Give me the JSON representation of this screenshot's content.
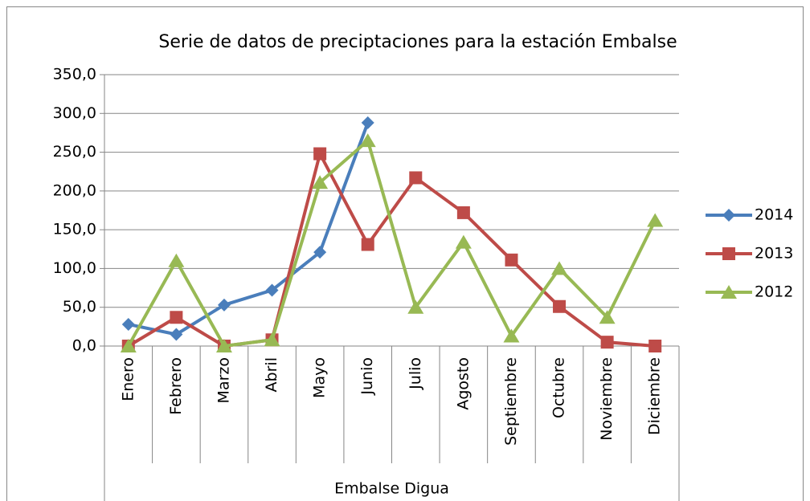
{
  "chart_data": {
    "type": "line",
    "title": "Serie de datos de preciptaciones para la estación Embalse",
    "x_label": "Embalse Digua",
    "categories": [
      "Enero",
      "Febrero",
      "Marzo",
      "Abril",
      "Mayo",
      "Junio",
      "Julio",
      "Agosto",
      "Septiembre",
      "Octubre",
      "Noviembre",
      "Diciembre"
    ],
    "series": [
      {
        "name": "2014",
        "color": "#4a7ebb",
        "marker": "diamond",
        "values": [
          28,
          15,
          53,
          72,
          121,
          288,
          null,
          null,
          null,
          null,
          null,
          null
        ]
      },
      {
        "name": "2013",
        "color": "#be4b48",
        "marker": "square",
        "values": [
          0,
          37,
          0,
          8,
          248,
          131,
          217,
          172,
          111,
          51,
          5,
          0
        ]
      },
      {
        "name": "2012",
        "color": "#98b954",
        "marker": "triangle",
        "values": [
          0,
          110,
          0,
          8,
          211,
          265,
          50,
          134,
          13,
          100,
          37,
          162
        ]
      }
    ],
    "ylim": [
      0,
      350
    ],
    "yticks": [
      {
        "value": 0,
        "label": "0,0"
      },
      {
        "value": 50,
        "label": "50,0"
      },
      {
        "value": 100,
        "label": "100,0"
      },
      {
        "value": 150,
        "label": "150,0"
      },
      {
        "value": 200,
        "label": "200,0"
      },
      {
        "value": 250,
        "label": "250,0"
      },
      {
        "value": 300,
        "label": "300,0"
      },
      {
        "value": 350,
        "label": "350,0"
      }
    ],
    "grid": true,
    "legend": "right"
  }
}
